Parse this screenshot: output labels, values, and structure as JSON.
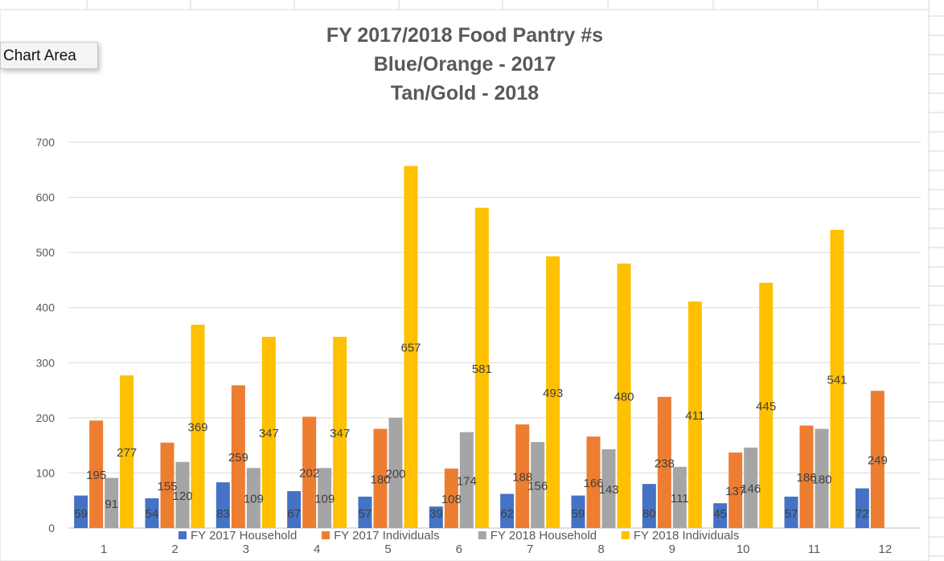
{
  "tooltip": "Chart Area",
  "chart_data": {
    "type": "bar",
    "title": [
      "FY 2017/2018 Food Pantry #s",
      "Blue/Orange - 2017",
      "Tan/Gold - 2018"
    ],
    "categories": [
      "1",
      "2",
      "3",
      "4",
      "5",
      "6",
      "7",
      "8",
      "9",
      "10",
      "11",
      "12"
    ],
    "ylim": [
      0,
      700
    ],
    "yticks": [
      0,
      100,
      200,
      300,
      400,
      500,
      600,
      700
    ],
    "grid": true,
    "legend_position": "bottom",
    "series": [
      {
        "name": "FY 2017 Household",
        "color": "#4472c4",
        "values": [
          59,
          54,
          83,
          67,
          57,
          39,
          62,
          59,
          80,
          45,
          57,
          72
        ]
      },
      {
        "name": "FY 2017 Individuals",
        "color": "#ed7d31",
        "values": [
          195,
          155,
          259,
          202,
          180,
          108,
          188,
          166,
          238,
          137,
          186,
          249
        ]
      },
      {
        "name": "FY 2018 Household",
        "color": "#a5a5a5",
        "values": [
          91,
          120,
          109,
          109,
          200,
          174,
          156,
          143,
          111,
          146,
          180,
          null
        ]
      },
      {
        "name": "FY 2018 Individuals",
        "color": "#ffc000",
        "values": [
          277,
          369,
          347,
          347,
          657,
          581,
          493,
          480,
          411,
          445,
          541,
          null
        ]
      }
    ]
  }
}
